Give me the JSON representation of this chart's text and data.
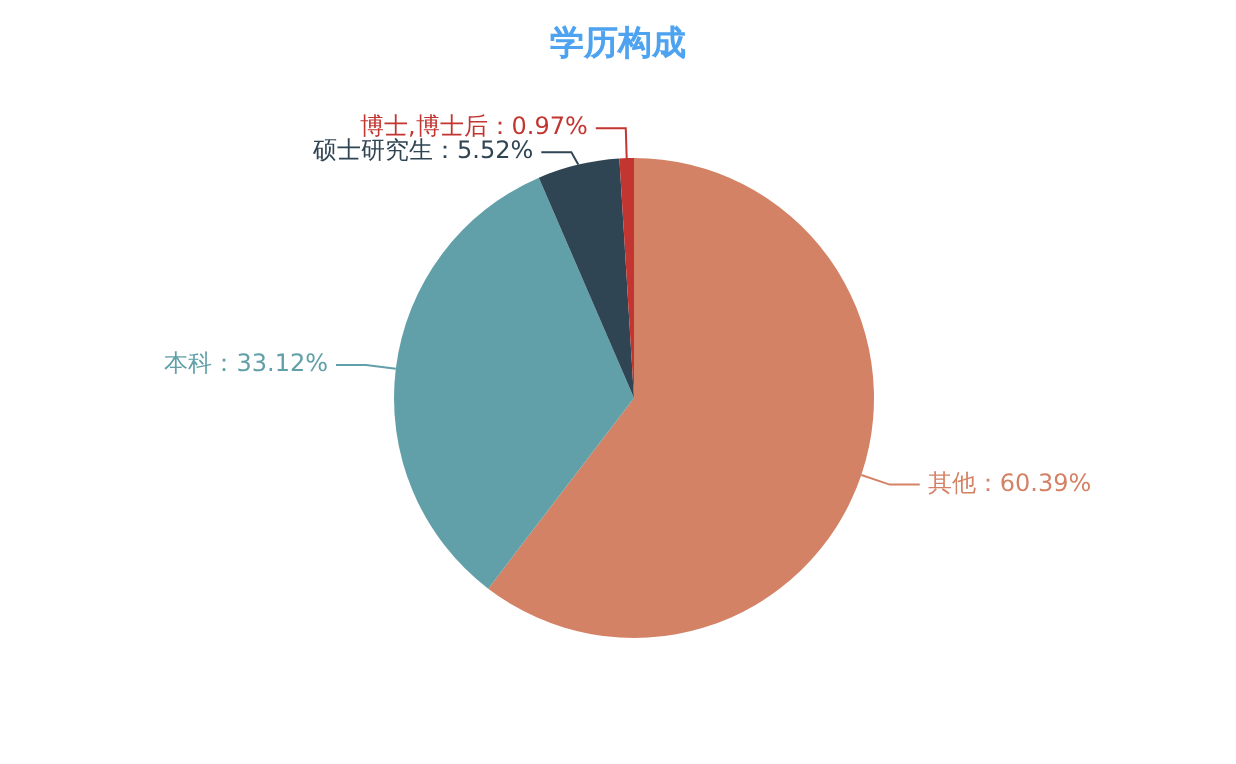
{
  "chart_data": {
    "type": "pie",
    "title": "学历构成",
    "categories": [
      "其他",
      "本科",
      "硕士研究生",
      "博士,博士后"
    ],
    "values": [
      60.39,
      33.12,
      5.52,
      0.97
    ],
    "colors": [
      "#d48265",
      "#61a0a8",
      "#2f4554",
      "#c23531"
    ],
    "value_labels": [
      "60.39%",
      "33.12%",
      "5.52%",
      "0.97%"
    ]
  }
}
